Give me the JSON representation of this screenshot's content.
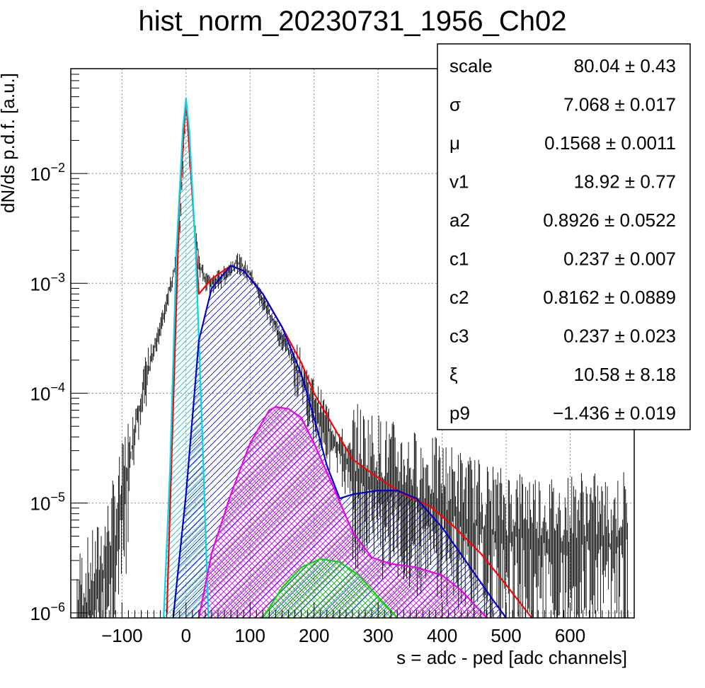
{
  "chart_data": {
    "type": "line",
    "title": "hist_norm_20230731_1956_Ch02",
    "xlabel": "s = adc - ped [adc channels]",
    "ylabel": "dN/ds p.d.f. [a.u.]",
    "xlim": [
      -180,
      700
    ],
    "ylim": [
      9e-07,
      0.09
    ],
    "yscale": "log",
    "grid": true,
    "x_ticks": [
      -100,
      0,
      100,
      200,
      300,
      400,
      500,
      600
    ],
    "x_tick_labels": [
      "−100",
      "0",
      "100",
      "200",
      "300",
      "400",
      "500",
      "600"
    ],
    "y_ticks": [
      1e-06,
      1e-05,
      0.0001,
      0.001,
      0.01
    ],
    "y_tick_labels": [
      {
        "base": "10",
        "exp": "−6"
      },
      {
        "base": "10",
        "exp": "−5"
      },
      {
        "base": "10",
        "exp": "−4"
      },
      {
        "base": "10",
        "exp": "−3"
      },
      {
        "base": "10",
        "exp": "−2"
      }
    ],
    "series": [
      {
        "color": "#ff0000",
        "points": [
          [
            -30,
            1e-06
          ],
          [
            -10,
            0.006
          ],
          [
            0,
            0.048
          ],
          [
            10,
            0.006
          ],
          [
            20,
            0.0008
          ],
          [
            40,
            0.0011
          ],
          [
            70,
            0.00145
          ],
          [
            90,
            0.0013
          ],
          [
            120,
            0.0008
          ],
          [
            150,
            0.0004
          ],
          [
            180,
            0.00019
          ],
          [
            200,
            0.0001
          ],
          [
            230,
            5e-05
          ],
          [
            260,
            2.5e-05
          ],
          [
            300,
            1.7e-05
          ],
          [
            340,
            1.2e-05
          ],
          [
            380,
            9.5e-06
          ],
          [
            420,
            6e-06
          ],
          [
            460,
            3.5e-06
          ],
          [
            500,
            1.8e-06
          ],
          [
            540,
            9e-07
          ]
        ]
      },
      {
        "color": "#00d8e8",
        "fill": "#00d8e8",
        "points": [
          [
            -35,
            9e-07
          ],
          [
            -25,
            2e-05
          ],
          [
            -15,
            0.002
          ],
          [
            -5,
            0.025
          ],
          [
            0,
            0.048
          ],
          [
            5,
            0.025
          ],
          [
            15,
            0.002
          ],
          [
            25,
            5e-05
          ],
          [
            35,
            9e-07
          ]
        ]
      },
      {
        "color": "#0000cc",
        "fill": "#0000cc",
        "points": [
          [
            -20,
            9e-07
          ],
          [
            0,
            1.2e-05
          ],
          [
            20,
            0.0003
          ],
          [
            40,
            0.0009
          ],
          [
            70,
            0.00145
          ],
          [
            90,
            0.0013
          ],
          [
            120,
            0.0008
          ],
          [
            150,
            0.0004
          ],
          [
            180,
            0.00015
          ],
          [
            200,
            6e-05
          ],
          [
            220,
            2.2e-05
          ],
          [
            240,
            1.1e-05
          ],
          [
            260,
            1.2e-05
          ],
          [
            300,
            1.3e-05
          ],
          [
            330,
            1.3e-05
          ],
          [
            360,
            1.1e-05
          ],
          [
            400,
            6e-06
          ],
          [
            440,
            2.8e-06
          ],
          [
            480,
            1.3e-06
          ],
          [
            500,
            9e-07
          ]
        ]
      },
      {
        "color": "#ee00ee",
        "fill": "#ee00ee",
        "points": [
          [
            20,
            9e-07
          ],
          [
            40,
            3.5e-06
          ],
          [
            70,
            1.2e-05
          ],
          [
            100,
            3.5e-05
          ],
          [
            130,
            7e-05
          ],
          [
            140,
            7.5e-05
          ],
          [
            160,
            7.2e-05
          ],
          [
            180,
            6e-05
          ],
          [
            200,
            3.5e-05
          ],
          [
            230,
            1.4e-05
          ],
          [
            260,
            5.5e-06
          ],
          [
            290,
            3.2e-06
          ],
          [
            320,
            2.8e-06
          ],
          [
            360,
            2.6e-06
          ],
          [
            400,
            2.2e-06
          ],
          [
            430,
            1.6e-06
          ],
          [
            450,
            1.2e-06
          ],
          [
            470,
            9e-07
          ]
        ]
      },
      {
        "color": "#00dd00",
        "fill": "#00dd00",
        "points": [
          [
            120,
            9e-07
          ],
          [
            150,
            1.7e-06
          ],
          [
            180,
            2.6e-06
          ],
          [
            210,
            3.1e-06
          ],
          [
            240,
            2.9e-06
          ],
          [
            270,
            2.2e-06
          ],
          [
            300,
            1.4e-06
          ],
          [
            330,
            9e-07
          ]
        ]
      },
      {
        "color": "#000000",
        "kind": "histogram",
        "points": [
          [
            -170,
            9e-07
          ],
          [
            -140,
            1.5e-06
          ],
          [
            -120,
            3e-06
          ],
          [
            -100,
            8e-06
          ],
          [
            -90,
            2e-05
          ],
          [
            -80,
            5e-05
          ],
          [
            -70,
            9e-05
          ],
          [
            -60,
            0.00015
          ],
          [
            -50,
            0.00025
          ],
          [
            -40,
            0.0004
          ],
          [
            -30,
            0.0007
          ],
          [
            -20,
            0.0012
          ],
          [
            -10,
            0.003
          ],
          [
            0,
            0.045
          ],
          [
            10,
            0.006
          ],
          [
            20,
            0.0015
          ],
          [
            30,
            0.0011
          ],
          [
            40,
            0.001
          ],
          [
            60,
            0.0012
          ],
          [
            80,
            0.0016
          ],
          [
            100,
            0.0012
          ],
          [
            120,
            0.0007
          ],
          [
            140,
            0.0004
          ],
          [
            160,
            0.00025
          ],
          [
            180,
            0.00014
          ],
          [
            200,
            8e-05
          ],
          [
            220,
            5e-05
          ],
          [
            240,
            3e-05
          ],
          [
            260,
            2e-05
          ],
          [
            300,
            1.6e-05
          ],
          [
            340,
            1.2e-05
          ],
          [
            380,
            1e-05
          ],
          [
            420,
            8e-06
          ],
          [
            460,
            6e-06
          ],
          [
            500,
            5e-06
          ],
          [
            540,
            5e-06
          ],
          [
            580,
            4e-06
          ],
          [
            620,
            5e-06
          ],
          [
            660,
            4e-06
          ],
          [
            690,
            5e-06
          ]
        ]
      }
    ],
    "stats": [
      {
        "name": "scale",
        "value": "80.04",
        "err": "0.43"
      },
      {
        "name": "σ",
        "value": "7.068",
        "err": "0.017"
      },
      {
        "name": "μ",
        "value": "0.1568",
        "err": "0.0011"
      },
      {
        "name": "v1",
        "value": "18.92",
        "err": "0.77"
      },
      {
        "name": "a2",
        "value": "0.8926",
        "err": "0.0522"
      },
      {
        "name": "c1",
        "value": "0.237",
        "err": "0.007"
      },
      {
        "name": "c2",
        "value": "0.8162",
        "err": "0.0889"
      },
      {
        "name": "c3",
        "value": "0.237",
        "err": "0.023"
      },
      {
        "name": "ξ",
        "value": "10.58",
        "err": "8.18"
      },
      {
        "name": "p9",
        "value": "−1.436",
        "err": "0.019"
      }
    ]
  }
}
